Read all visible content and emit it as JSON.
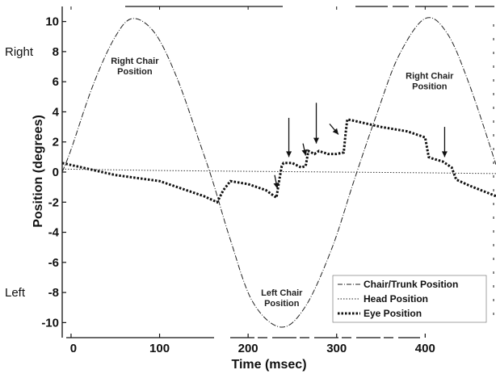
{
  "chart_data": {
    "type": "line",
    "title": "",
    "xlabel": "Time (msec)",
    "ylabel": "Position (degrees)",
    "xlim": [
      -10,
      480
    ],
    "ylim": [
      -11,
      11
    ],
    "x_ticks": [
      0,
      100,
      200,
      300,
      400
    ],
    "y_ticks": [
      10,
      8,
      6,
      4,
      2,
      0,
      -2,
      -4,
      -6,
      -8,
      -10
    ],
    "y_side_labels": [
      {
        "text": "Right",
        "y": 8
      },
      {
        "text": "Left",
        "y": -8
      }
    ],
    "legend": {
      "position": "bottom-right",
      "entries": [
        "Chair/Trunk Position",
        "Head Position",
        "Eye Position"
      ]
    },
    "annotations": [
      {
        "line1": "Right Chair",
        "line2": "Position",
        "x": 72,
        "y": 7.2
      },
      {
        "line1": "Right Chair",
        "line2": "Position",
        "x": 405,
        "y": 6.2
      },
      {
        "line1": "Left Chair",
        "line2": "Position",
        "x": 238,
        "y": -8.2
      }
    ],
    "series": [
      {
        "name": "Chair/Trunk Position",
        "style": "dash-dot",
        "x": [
          -10,
          0,
          25,
          50,
          70,
          95,
          120,
          145,
          160,
          180,
          205,
          237,
          265,
          295,
          320,
          345,
          370,
          400,
          425,
          450,
          480
        ],
        "y": [
          0.0,
          1.5,
          5.8,
          9.0,
          10.2,
          9.2,
          6.2,
          2.0,
          -0.6,
          -4.5,
          -8.6,
          -10.3,
          -8.9,
          -5.0,
          -0.5,
          3.8,
          7.7,
          10.2,
          9.2,
          5.8,
          0.5
        ]
      },
      {
        "name": "Head Position",
        "style": "dotted",
        "x": [
          -10,
          100,
          200,
          300,
          400,
          480
        ],
        "y": [
          0.2,
          0.1,
          0.05,
          0.0,
          -0.05,
          -0.1
        ]
      },
      {
        "name": "Eye Position",
        "style": "heavy-dotted",
        "x": [
          -10,
          50,
          100,
          150,
          165,
          172,
          180,
          200,
          220,
          232,
          235,
          238,
          240,
          250,
          260,
          265,
          268,
          275,
          280,
          290,
          300,
          308,
          310,
          312,
          320,
          350,
          380,
          400,
          404,
          408,
          420,
          430,
          435,
          450,
          480
        ],
        "y": [
          0.6,
          -0.2,
          -0.6,
          -1.6,
          -2.0,
          -1.2,
          -0.6,
          -0.8,
          -1.2,
          -1.7,
          -0.6,
          0.4,
          0.6,
          0.6,
          0.3,
          0.4,
          1.4,
          1.2,
          1.4,
          1.2,
          1.2,
          1.3,
          2.5,
          3.5,
          3.4,
          3.0,
          2.7,
          2.3,
          1.0,
          0.9,
          0.7,
          0.3,
          -0.5,
          -0.9,
          -1.6
        ]
      }
    ]
  }
}
